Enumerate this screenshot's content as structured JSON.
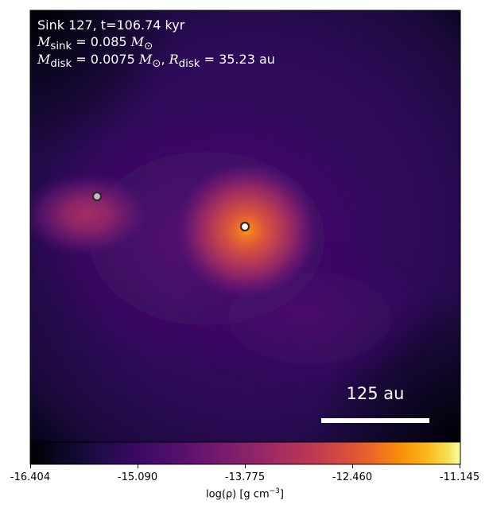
{
  "annotation": {
    "line1": "Sink 127, t=106.74 kyr",
    "m_sink_symbol": "M",
    "m_sink_sub": "sink",
    "m_sink_value": " = 0.085 ",
    "m_sun_symbol": "M",
    "m_sun_sub": "⊙",
    "m_disk_symbol": "M",
    "m_disk_sub": "disk",
    "m_disk_value": " = 0.0075 ",
    "r_disk_symbol": "R",
    "r_disk_sub": "disk",
    "r_disk_value": " = 35.23 au"
  },
  "scale_bar": {
    "label": "125 au"
  },
  "colorbar": {
    "ticks": [
      "-16.404",
      "-15.090",
      "-13.775",
      "-12.460",
      "-11.145"
    ],
    "label_main": "log(ρ) [g cm",
    "label_sup": "−3",
    "label_end": "]",
    "colormap": "inferno"
  },
  "colors": {
    "background_outer": "#000004",
    "background_mid": "#2a0d55",
    "clump_core": "#f48a2a",
    "sink_fill_primary": "#ffffff",
    "sink_fill_secondary": "#c9b7cc",
    "sink_edge": "#2a2a2a",
    "scale_bar": "#ffffff"
  }
}
